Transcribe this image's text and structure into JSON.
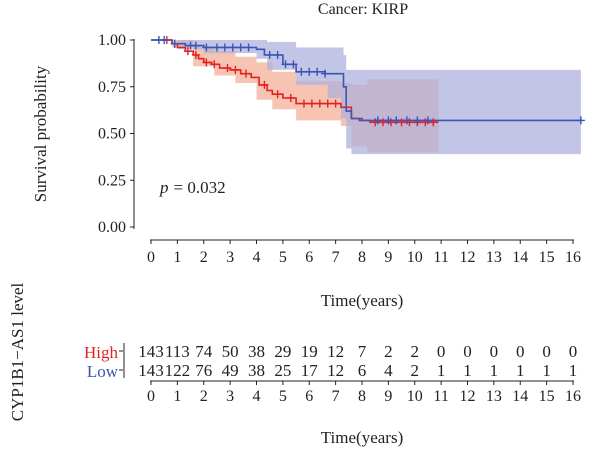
{
  "chart_data": [
    {
      "type": "line",
      "subtype": "kaplan-meier",
      "title": "Cancer: KIRP",
      "xlabel": "Time(years)",
      "ylabel": "Survival probability",
      "xlim": [
        0,
        16
      ],
      "ylim": [
        0,
        1
      ],
      "x_ticks": [
        "0",
        "1",
        "2",
        "3",
        "4",
        "5",
        "6",
        "7",
        "8",
        "9",
        "10",
        "11",
        "12",
        "13",
        "14",
        "15",
        "16"
      ],
      "y_ticks": [
        "0.00",
        "0.25",
        "0.50",
        "0.75",
        "1.00"
      ],
      "annotation": {
        "p_label": "p",
        "p_value": "= 0.032"
      },
      "grid": false,
      "series": [
        {
          "name": "High",
          "color": "#e32222",
          "ci_color": "#f6b8a6",
          "steps": [
            [
              0,
              1.0
            ],
            [
              0.6,
              1.0
            ],
            [
              0.8,
              0.98
            ],
            [
              1.0,
              0.96
            ],
            [
              1.3,
              0.94
            ],
            [
              1.6,
              0.92
            ],
            [
              1.8,
              0.9
            ],
            [
              2.0,
              0.88
            ],
            [
              2.3,
              0.87
            ],
            [
              2.6,
              0.85
            ],
            [
              3.0,
              0.84
            ],
            [
              3.4,
              0.82
            ],
            [
              3.8,
              0.8
            ],
            [
              4.1,
              0.76
            ],
            [
              4.4,
              0.73
            ],
            [
              4.6,
              0.71
            ],
            [
              5.0,
              0.69
            ],
            [
              5.5,
              0.66
            ],
            [
              7.2,
              0.64
            ],
            [
              7.6,
              0.58
            ],
            [
              8.0,
              0.57
            ],
            [
              8.3,
              0.56
            ],
            [
              10.9,
              0.56
            ]
          ],
          "ci_upper": [
            [
              0,
              1.0
            ],
            [
              0.8,
              1.0
            ],
            [
              1.6,
              0.97
            ],
            [
              2.4,
              0.94
            ],
            [
              3.2,
              0.91
            ],
            [
              4.0,
              0.88
            ],
            [
              4.6,
              0.83
            ],
            [
              5.5,
              0.78
            ],
            [
              7.2,
              0.77
            ],
            [
              7.6,
              0.76
            ],
            [
              8.2,
              0.79
            ],
            [
              10.9,
              0.79
            ]
          ],
          "ci_lower": [
            [
              0,
              1.0
            ],
            [
              0.8,
              0.96
            ],
            [
              1.6,
              0.86
            ],
            [
              2.4,
              0.81
            ],
            [
              3.2,
              0.77
            ],
            [
              4.0,
              0.68
            ],
            [
              4.6,
              0.63
            ],
            [
              5.5,
              0.57
            ],
            [
              7.2,
              0.54
            ],
            [
              7.6,
              0.43
            ],
            [
              8.2,
              0.4
            ],
            [
              10.9,
              0.4
            ]
          ],
          "censor_x": [
            0.6,
            0.9,
            1.4,
            1.7,
            2.1,
            2.4,
            2.9,
            3.2,
            3.6,
            4.3,
            4.8,
            5.3,
            5.8,
            6.1,
            6.4,
            6.7,
            7.0,
            8.5,
            8.8,
            9.1,
            9.5,
            9.8,
            10.1,
            10.4,
            10.7
          ],
          "at_risk": [
            "143",
            "113",
            "74",
            "50",
            "38",
            "29",
            "19",
            "12",
            "7",
            "2",
            "2",
            "0",
            "0",
            "0",
            "0",
            "0",
            "0"
          ]
        },
        {
          "name": "Low",
          "color": "#3a55b4",
          "ci_color": "#aeb2dc",
          "steps": [
            [
              0,
              1.0
            ],
            [
              0.5,
              1.0
            ],
            [
              0.8,
              0.98
            ],
            [
              1.3,
              0.97
            ],
            [
              2.0,
              0.96
            ],
            [
              4.0,
              0.95
            ],
            [
              4.3,
              0.92
            ],
            [
              5.0,
              0.87
            ],
            [
              5.5,
              0.83
            ],
            [
              6.6,
              0.82
            ],
            [
              7.3,
              0.75
            ],
            [
              7.4,
              0.62
            ],
            [
              7.6,
              0.58
            ],
            [
              7.9,
              0.57
            ],
            [
              16.3,
              0.57
            ]
          ],
          "ci_upper": [
            [
              0,
              1.0
            ],
            [
              4.2,
              1.0
            ],
            [
              4.4,
              0.99
            ],
            [
              5.5,
              0.96
            ],
            [
              7.3,
              0.92
            ],
            [
              7.4,
              0.84
            ],
            [
              16.3,
              0.84
            ]
          ],
          "ci_lower": [
            [
              0,
              1.0
            ],
            [
              1.0,
              0.95
            ],
            [
              2.0,
              0.93
            ],
            [
              4.0,
              0.9
            ],
            [
              4.4,
              0.84
            ],
            [
              5.5,
              0.76
            ],
            [
              6.7,
              0.69
            ],
            [
              7.2,
              0.58
            ],
            [
              7.4,
              0.42
            ],
            [
              7.6,
              0.39
            ],
            [
              16.3,
              0.39
            ]
          ],
          "censor_x": [
            0.3,
            0.5,
            0.9,
            1.5,
            1.7,
            2.1,
            2.5,
            2.8,
            3.1,
            3.4,
            3.7,
            4.5,
            4.8,
            5.1,
            5.4,
            5.7,
            6.0,
            6.3,
            6.6,
            8.6,
            9.0,
            9.3,
            9.7,
            10.1,
            10.5,
            16.3
          ],
          "at_risk": [
            "143",
            "122",
            "76",
            "49",
            "38",
            "25",
            "17",
            "12",
            "6",
            "4",
            "2",
            "1",
            "1",
            "1",
            "1",
            "1",
            "1"
          ]
        }
      ]
    },
    {
      "type": "table",
      "title": "",
      "ylabel": "CYP1B1−AS1 level",
      "xlabel": "Time(years)",
      "rows": [
        "High",
        "Low"
      ],
      "x_ticks": [
        "0",
        "1",
        "2",
        "3",
        "4",
        "5",
        "6",
        "7",
        "8",
        "9",
        "10",
        "11",
        "12",
        "13",
        "14",
        "15",
        "16"
      ]
    }
  ]
}
